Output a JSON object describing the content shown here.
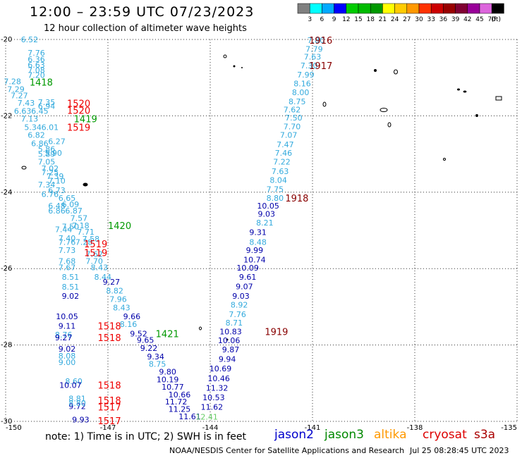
{
  "title": "12:00 – 23:59 UTC 07/23/2023",
  "subtitle": "12 hour collection of altimeter wave heights",
  "colorbar": {
    "ticks": [
      "3",
      "6",
      "9",
      "12",
      "15",
      "18",
      "21",
      "24",
      "27",
      "30",
      "33",
      "36",
      "39",
      "42",
      "45",
      "70"
    ],
    "unit": "(ft)",
    "colors": [
      "#808080",
      "#00ffff",
      "#00aaff",
      "#0000ff",
      "#00cc00",
      "#00bb00",
      "#009900",
      "#ffff00",
      "#ffcc00",
      "#ff9900",
      "#ff3300",
      "#cc0000",
      "#990000",
      "#800033",
      "#990099",
      "#dd66dd",
      "#000000"
    ]
  },
  "note": "note: 1) Time is in UTC; 2) SWH is in feet",
  "legend": {
    "jason2": "jason2",
    "jason3": "jason3",
    "altika": "altika",
    "cryosat": "cryosat",
    "s3a": "s3a"
  },
  "credit": "NOAA/NESDIS Center for Satellite Applications and Research",
  "credit_date": "Jul 25 08:28:45 UTC 2023",
  "colors": {
    "light": "#33aadd",
    "dark": "#0000aa",
    "green": "#009900",
    "red": "#ee0000",
    "maroon": "#880000",
    "lightgreen": "#66cc66"
  },
  "chart_data": {
    "type": "scatter",
    "x_ticks": [
      "-150",
      "-147",
      "-144",
      "-141",
      "-138",
      "-135"
    ],
    "y_ticks": [
      "-20",
      "-22",
      "-24",
      "-26",
      "-28",
      "-30"
    ],
    "xlim": [
      -150,
      -135
    ],
    "ylim": [
      -30,
      -20
    ],
    "grid": true,
    "points": [
      {
        "x": -149.3,
        "y": -20.0,
        "v": "6.52",
        "c": "light"
      },
      {
        "x": -149.1,
        "y": -20.35,
        "v": "7.76",
        "c": "light"
      },
      {
        "x": -149.1,
        "y": -20.52,
        "v": "6.36",
        "c": "light"
      },
      {
        "x": -149.1,
        "y": -20.66,
        "v": "6.63",
        "c": "light"
      },
      {
        "x": -149.1,
        "y": -20.8,
        "v": "7.08",
        "c": "light"
      },
      {
        "x": -149.1,
        "y": -20.93,
        "v": "7.20",
        "c": "light"
      },
      {
        "x": -149.8,
        "y": -21.1,
        "v": "7.28",
        "c": "light"
      },
      {
        "x": -149.7,
        "y": -21.3,
        "v": "7.29",
        "c": "light"
      },
      {
        "x": -149.6,
        "y": -21.47,
        "v": "7.27",
        "c": "light"
      },
      {
        "x": -149.4,
        "y": -21.66,
        "v": "7.43",
        "c": "light"
      },
      {
        "x": -148.8,
        "y": -21.64,
        "v": "7.35",
        "c": "light"
      },
      {
        "x": -148.8,
        "y": -21.74,
        "v": "6.94",
        "c": "light"
      },
      {
        "x": -149.5,
        "y": -21.87,
        "v": "6.63",
        "c": "light"
      },
      {
        "x": -149.0,
        "y": -21.87,
        "v": "6.45",
        "c": "light"
      },
      {
        "x": -149.3,
        "y": -22.08,
        "v": "7.13",
        "c": "light"
      },
      {
        "x": -149.2,
        "y": -22.3,
        "v": "5.34",
        "c": "light"
      },
      {
        "x": -148.7,
        "y": -22.3,
        "v": "6.01",
        "c": "light"
      },
      {
        "x": -149.1,
        "y": -22.5,
        "v": "6.82",
        "c": "light"
      },
      {
        "x": -148.5,
        "y": -22.67,
        "v": "6.27",
        "c": "light"
      },
      {
        "x": -149.0,
        "y": -22.72,
        "v": "6.86",
        "c": "light"
      },
      {
        "x": -148.8,
        "y": -22.87,
        "v": "5.86",
        "c": "light"
      },
      {
        "x": -148.8,
        "y": -23.0,
        "v": "5.89",
        "c": "light"
      },
      {
        "x": -148.6,
        "y": -22.97,
        "v": "5.90",
        "c": "light"
      },
      {
        "x": -148.8,
        "y": -23.2,
        "v": "7.05",
        "c": "light"
      },
      {
        "x": -148.7,
        "y": -23.38,
        "v": "7.02",
        "c": "light"
      },
      {
        "x": -148.7,
        "y": -23.48,
        "v": "7.25",
        "c": "light"
      },
      {
        "x": -148.55,
        "y": -23.58,
        "v": "7.39",
        "c": "light"
      },
      {
        "x": -148.5,
        "y": -23.7,
        "v": "7.10",
        "c": "light"
      },
      {
        "x": -148.8,
        "y": -23.8,
        "v": "7.34",
        "c": "light"
      },
      {
        "x": -148.5,
        "y": -23.95,
        "v": "6.73",
        "c": "light"
      },
      {
        "x": -148.7,
        "y": -24.05,
        "v": "6.76",
        "c": "light"
      },
      {
        "x": -148.2,
        "y": -24.15,
        "v": "6.65",
        "c": "light"
      },
      {
        "x": -148.5,
        "y": -24.35,
        "v": "6.48",
        "c": "light"
      },
      {
        "x": -148.1,
        "y": -24.32,
        "v": "6.09",
        "c": "light"
      },
      {
        "x": -148.5,
        "y": -24.48,
        "v": "6.86",
        "c": "light"
      },
      {
        "x": -148.0,
        "y": -24.48,
        "v": "6.87",
        "c": "light"
      },
      {
        "x": -147.85,
        "y": -24.68,
        "v": "7.57",
        "c": "light"
      },
      {
        "x": -148.1,
        "y": -24.9,
        "v": "7.50",
        "c": "light"
      },
      {
        "x": -147.8,
        "y": -24.87,
        "v": "7.18",
        "c": "light"
      },
      {
        "x": -148.3,
        "y": -24.97,
        "v": "7.44",
        "c": "light"
      },
      {
        "x": -147.65,
        "y": -25.04,
        "v": "7.71",
        "c": "light"
      },
      {
        "x": -148.2,
        "y": -25.2,
        "v": "7.40",
        "c": "light"
      },
      {
        "x": -147.5,
        "y": -25.22,
        "v": "7.58",
        "c": "light"
      },
      {
        "x": -148.2,
        "y": -25.3,
        "v": "7.76",
        "c": "light"
      },
      {
        "x": -147.7,
        "y": -25.3,
        "v": "7.28",
        "c": "light"
      },
      {
        "x": -148.2,
        "y": -25.52,
        "v": "7.73",
        "c": "light"
      },
      {
        "x": -147.4,
        "y": -25.62,
        "v": "7.62",
        "c": "light"
      },
      {
        "x": -148.2,
        "y": -25.8,
        "v": "7.68",
        "c": "light"
      },
      {
        "x": -147.4,
        "y": -25.8,
        "v": "7.70",
        "c": "light"
      },
      {
        "x": -148.2,
        "y": -25.97,
        "v": "7.67",
        "c": "light"
      },
      {
        "x": -147.25,
        "y": -25.97,
        "v": "8.43",
        "c": "light"
      },
      {
        "x": -148.1,
        "y": -26.22,
        "v": "8.51",
        "c": "light"
      },
      {
        "x": -147.15,
        "y": -26.22,
        "v": "8.44",
        "c": "light"
      },
      {
        "x": -146.9,
        "y": -26.35,
        "v": "9.27",
        "c": "dark"
      },
      {
        "x": -148.1,
        "y": -26.48,
        "v": "8.51",
        "c": "light"
      },
      {
        "x": -146.8,
        "y": -26.58,
        "v": "8.82",
        "c": "light"
      },
      {
        "x": -148.1,
        "y": -26.72,
        "v": "9.02",
        "c": "dark"
      },
      {
        "x": -146.7,
        "y": -26.8,
        "v": "7.96",
        "c": "light"
      },
      {
        "x": -146.6,
        "y": -27.02,
        "v": "8.43",
        "c": "light"
      },
      {
        "x": -148.2,
        "y": -27.25,
        "v": "10.05",
        "c": "dark"
      },
      {
        "x": -146.3,
        "y": -27.25,
        "v": "9.66",
        "c": "dark"
      },
      {
        "x": -148.2,
        "y": -27.5,
        "v": "9.11",
        "c": "dark"
      },
      {
        "x": -146.4,
        "y": -27.45,
        "v": "8.16",
        "c": "light"
      },
      {
        "x": -148.3,
        "y": -27.73,
        "v": "8.76",
        "c": "light"
      },
      {
        "x": -148.3,
        "y": -27.8,
        "v": "9.27",
        "c": "dark"
      },
      {
        "x": -146.1,
        "y": -27.7,
        "v": "9.52",
        "c": "dark"
      },
      {
        "x": -145.9,
        "y": -27.87,
        "v": "9.65",
        "c": "dark"
      },
      {
        "x": -148.2,
        "y": -28.1,
        "v": "9.02",
        "c": "dark"
      },
      {
        "x": -145.8,
        "y": -28.08,
        "v": "9.22",
        "c": "dark"
      },
      {
        "x": -148.2,
        "y": -28.28,
        "v": "8.08",
        "c": "light"
      },
      {
        "x": -145.6,
        "y": -28.3,
        "v": "9.34",
        "c": "dark"
      },
      {
        "x": -148.2,
        "y": -28.45,
        "v": "9.00",
        "c": "light"
      },
      {
        "x": -145.55,
        "y": -28.5,
        "v": "8.75",
        "c": "light"
      },
      {
        "x": -145.25,
        "y": -28.7,
        "v": "9.80",
        "c": "dark"
      },
      {
        "x": -148.0,
        "y": -28.95,
        "v": "8.60",
        "c": "light"
      },
      {
        "x": -148.1,
        "y": -29.05,
        "v": "10.07",
        "c": "dark"
      },
      {
        "x": -145.25,
        "y": -28.9,
        "v": "10.19",
        "c": "dark"
      },
      {
        "x": -145.1,
        "y": -29.1,
        "v": "10.77",
        "c": "dark"
      },
      {
        "x": -144.9,
        "y": -29.3,
        "v": "10.66",
        "c": "dark"
      },
      {
        "x": -147.9,
        "y": -29.4,
        "v": "8.81",
        "c": "light"
      },
      {
        "x": -145.0,
        "y": -29.48,
        "v": "11.72",
        "c": "dark"
      },
      {
        "x": -147.9,
        "y": -29.6,
        "v": "9.72",
        "c": "dark"
      },
      {
        "x": -147.9,
        "y": -29.52,
        "v": "8.80",
        "c": "light"
      },
      {
        "x": -144.9,
        "y": -29.68,
        "v": "11.25",
        "c": "dark"
      },
      {
        "x": -144.6,
        "y": -29.87,
        "v": "11.61",
        "c": "dark"
      },
      {
        "x": -147.8,
        "y": -29.95,
        "v": "9.93",
        "c": "dark"
      },
      {
        "x": -140.9,
        "y": -20.02,
        "v": "7.80",
        "c": "light"
      },
      {
        "x": -140.95,
        "y": -20.25,
        "v": "7.79",
        "c": "light"
      },
      {
        "x": -141.0,
        "y": -20.45,
        "v": "7.63",
        "c": "light"
      },
      {
        "x": -141.1,
        "y": -20.68,
        "v": "7.30",
        "c": "light"
      },
      {
        "x": -141.2,
        "y": -20.92,
        "v": "7.99",
        "c": "light"
      },
      {
        "x": -141.3,
        "y": -21.15,
        "v": "8.16",
        "c": "light"
      },
      {
        "x": -141.35,
        "y": -21.38,
        "v": "8.00",
        "c": "light"
      },
      {
        "x": -141.45,
        "y": -21.62,
        "v": "8.75",
        "c": "light"
      },
      {
        "x": -141.6,
        "y": -21.84,
        "v": "7.62",
        "c": "light"
      },
      {
        "x": -141.55,
        "y": -22.05,
        "v": "7.50",
        "c": "light"
      },
      {
        "x": -141.6,
        "y": -22.28,
        "v": "7.70",
        "c": "light"
      },
      {
        "x": -141.7,
        "y": -22.5,
        "v": "7.07",
        "c": "light"
      },
      {
        "x": -141.8,
        "y": -22.75,
        "v": "7.47",
        "c": "light"
      },
      {
        "x": -141.85,
        "y": -22.97,
        "v": "7.46",
        "c": "light"
      },
      {
        "x": -141.9,
        "y": -23.2,
        "v": "7.22",
        "c": "light"
      },
      {
        "x": -141.95,
        "y": -23.45,
        "v": "7.63",
        "c": "light"
      },
      {
        "x": -142.0,
        "y": -23.68,
        "v": "8.04",
        "c": "light"
      },
      {
        "x": -142.1,
        "y": -23.92,
        "v": "7.75",
        "c": "light"
      },
      {
        "x": -142.1,
        "y": -24.15,
        "v": "8.80",
        "c": "light"
      },
      {
        "x": -142.3,
        "y": -24.35,
        "v": "10.05",
        "c": "dark"
      },
      {
        "x": -142.35,
        "y": -24.57,
        "v": "9.03",
        "c": "dark"
      },
      {
        "x": -142.4,
        "y": -24.8,
        "v": "8.21",
        "c": "light"
      },
      {
        "x": -142.6,
        "y": -25.05,
        "v": "9.31",
        "c": "dark"
      },
      {
        "x": -142.6,
        "y": -25.3,
        "v": "8.48",
        "c": "light"
      },
      {
        "x": -142.7,
        "y": -25.52,
        "v": "9.99",
        "c": "dark"
      },
      {
        "x": -142.7,
        "y": -25.77,
        "v": "10.74",
        "c": "dark"
      },
      {
        "x": -142.9,
        "y": -25.98,
        "v": "10.09",
        "c": "dark"
      },
      {
        "x": -142.9,
        "y": -26.22,
        "v": "9.61",
        "c": "dark"
      },
      {
        "x": -143.0,
        "y": -26.47,
        "v": "9.07",
        "c": "dark"
      },
      {
        "x": -143.1,
        "y": -26.72,
        "v": "9.03",
        "c": "dark"
      },
      {
        "x": -143.15,
        "y": -26.95,
        "v": "8.92",
        "c": "light"
      },
      {
        "x": -143.2,
        "y": -27.2,
        "v": "7.76",
        "c": "light"
      },
      {
        "x": -143.3,
        "y": -27.42,
        "v": "8.71",
        "c": "light"
      },
      {
        "x": -143.4,
        "y": -27.65,
        "v": "10.83",
        "c": "dark"
      },
      {
        "x": -143.45,
        "y": -27.88,
        "v": "10.06",
        "c": "dark"
      },
      {
        "x": -143.4,
        "y": -28.12,
        "v": "9.87",
        "c": "dark"
      },
      {
        "x": -143.5,
        "y": -28.37,
        "v": "9.94",
        "c": "dark"
      },
      {
        "x": -143.7,
        "y": -28.62,
        "v": "10.69",
        "c": "dark"
      },
      {
        "x": -143.75,
        "y": -28.87,
        "v": "10.46",
        "c": "dark"
      },
      {
        "x": -143.8,
        "y": -29.12,
        "v": "11.32",
        "c": "dark"
      },
      {
        "x": -143.9,
        "y": -29.37,
        "v": "10.53",
        "c": "dark"
      },
      {
        "x": -143.95,
        "y": -29.62,
        "v": "11.62",
        "c": "dark"
      },
      {
        "x": -144.1,
        "y": -29.88,
        "v": "12.41",
        "c": "lightgreen"
      }
    ],
    "time_labels": [
      {
        "x": -141.1,
        "y": -20.02,
        "v": "1916",
        "c": "maroon"
      },
      {
        "x": -141.1,
        "y": -20.68,
        "v": "1917",
        "c": "maroon"
      },
      {
        "x": -141.8,
        "y": -24.15,
        "v": "1918",
        "c": "maroon"
      },
      {
        "x": -142.4,
        "y": -27.65,
        "v": "1919",
        "c": "maroon"
      },
      {
        "x": -149.3,
        "y": -21.12,
        "v": "1418",
        "c": "green"
      },
      {
        "x": -148.0,
        "y": -22.08,
        "v": "1419",
        "c": "green"
      },
      {
        "x": -147.0,
        "y": -24.87,
        "v": "1420",
        "c": "green"
      },
      {
        "x": -145.6,
        "y": -27.7,
        "v": "1421",
        "c": "green"
      },
      {
        "x": -148.2,
        "y": -21.67,
        "v": "1520",
        "c": "red"
      },
      {
        "x": -148.2,
        "y": -21.85,
        "v": "1520",
        "c": "red"
      },
      {
        "x": -148.2,
        "y": -22.3,
        "v": "1519",
        "c": "red"
      },
      {
        "x": -147.7,
        "y": -25.35,
        "v": "1519",
        "c": "red"
      },
      {
        "x": -147.7,
        "y": -25.58,
        "v": "1519",
        "c": "red"
      },
      {
        "x": -147.3,
        "y": -27.5,
        "v": "1518",
        "c": "red"
      },
      {
        "x": -147.3,
        "y": -27.8,
        "v": "1518",
        "c": "red"
      },
      {
        "x": -147.3,
        "y": -29.05,
        "v": "1518",
        "c": "red"
      },
      {
        "x": -147.3,
        "y": -29.45,
        "v": "1518",
        "c": "red"
      },
      {
        "x": -147.3,
        "y": -29.62,
        "v": "1517",
        "c": "red"
      },
      {
        "x": -147.3,
        "y": -29.98,
        "v": "1517",
        "c": "red"
      }
    ]
  }
}
